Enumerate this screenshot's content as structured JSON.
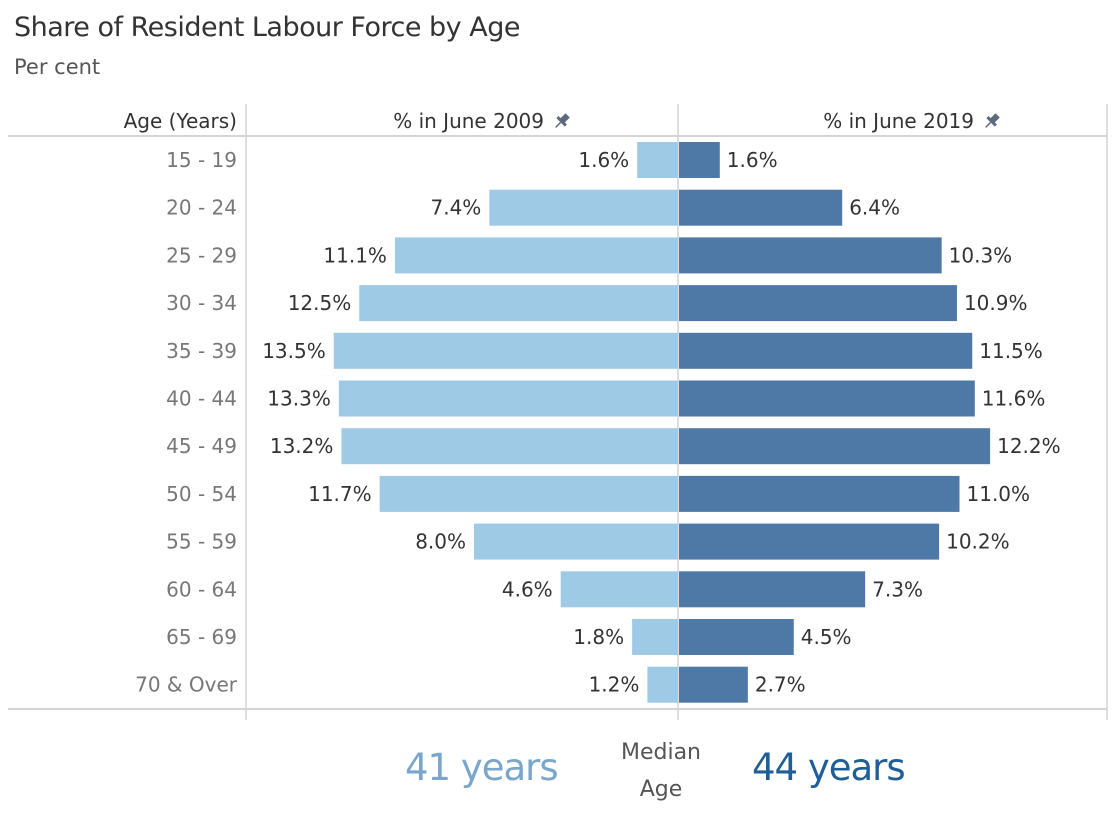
{
  "chart_data": {
    "type": "bar",
    "title": "Share of Resident Labour Force by Age",
    "subtitle": "Per cent",
    "category_header": "Age (Years)",
    "categories": [
      "15 - 19",
      "20 - 24",
      "25 - 29",
      "30 - 34",
      "35 - 39",
      "40 - 44",
      "45 - 49",
      "50 - 54",
      "55 - 59",
      "60 - 64",
      "65 - 69",
      "70 & Over"
    ],
    "series": [
      {
        "name": "% in June 2009",
        "color": "#9ecae6",
        "direction": "left",
        "values": [
          1.6,
          7.4,
          11.1,
          12.5,
          13.5,
          13.3,
          13.2,
          11.7,
          8.0,
          4.6,
          1.8,
          1.2
        ],
        "labels": [
          "1.6%",
          "7.4%",
          "11.1%",
          "12.5%",
          "13.5%",
          "13.3%",
          "13.2%",
          "11.7%",
          "8.0%",
          "4.6%",
          "1.8%",
          "1.2%"
        ]
      },
      {
        "name": "% in June 2019",
        "color": "#4e79a7",
        "direction": "right",
        "values": [
          1.6,
          6.4,
          10.3,
          10.9,
          11.5,
          11.6,
          12.2,
          11.0,
          10.2,
          7.3,
          4.5,
          2.7
        ],
        "labels": [
          "1.6%",
          "6.4%",
          "10.3%",
          "10.9%",
          "11.5%",
          "11.6%",
          "12.2%",
          "11.0%",
          "10.2%",
          "7.3%",
          "4.5%",
          "2.7%"
        ]
      }
    ],
    "xlabel": "",
    "ylabel": "Age (Years)",
    "xlim": [
      0,
      17
    ],
    "grid": false
  },
  "header_icon": "pin-icon",
  "median": {
    "label_line1": "Median",
    "label_line2": "Age",
    "value_2009": "41 years",
    "value_2019": "44 years",
    "color_2009": "#7aa6cc",
    "color_2019": "#1f5e96"
  }
}
